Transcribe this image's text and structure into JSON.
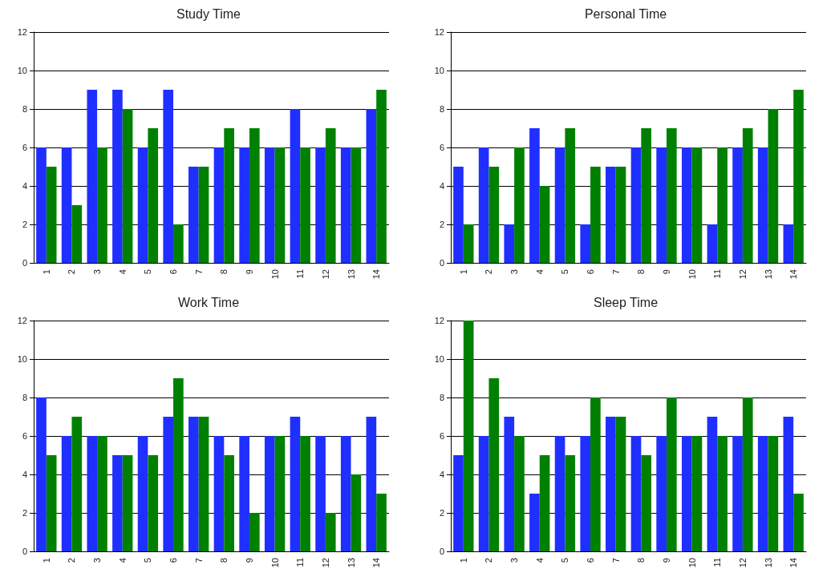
{
  "chart_data": [
    {
      "type": "bar",
      "title": "Study Time",
      "categories": [
        "1",
        "2",
        "3",
        "4",
        "5",
        "6",
        "7",
        "8",
        "9",
        "10",
        "11",
        "12",
        "13",
        "14"
      ],
      "series": [
        {
          "color": "#1f2fff",
          "values": [
            6,
            6,
            9,
            9,
            6,
            9,
            5,
            6,
            6,
            6,
            8,
            6,
            6,
            8
          ]
        },
        {
          "color": "#008000",
          "values": [
            5,
            3,
            6,
            8,
            7,
            2,
            5,
            7,
            7,
            6,
            6,
            7,
            6,
            9
          ]
        }
      ],
      "ylim": [
        0,
        12
      ],
      "yticks": [
        0,
        2,
        4,
        6,
        8,
        10,
        12
      ],
      "grid": "y"
    },
    {
      "type": "bar",
      "title": "Personal Time",
      "categories": [
        "1",
        "2",
        "3",
        "4",
        "5",
        "6",
        "7",
        "8",
        "9",
        "10",
        "11",
        "12",
        "13",
        "14"
      ],
      "series": [
        {
          "color": "#1f2fff",
          "values": [
            5,
            6,
            2,
            7,
            6,
            2,
            5,
            6,
            6,
            6,
            2,
            6,
            6,
            2
          ]
        },
        {
          "color": "#008000",
          "values": [
            2,
            5,
            6,
            4,
            7,
            5,
            5,
            7,
            7,
            6,
            6,
            7,
            8,
            9
          ]
        }
      ],
      "ylim": [
        0,
        12
      ],
      "yticks": [
        0,
        2,
        4,
        6,
        8,
        10,
        12
      ],
      "grid": "y"
    },
    {
      "type": "bar",
      "title": "Work Time",
      "categories": [
        "1",
        "2",
        "3",
        "4",
        "5",
        "6",
        "7",
        "8",
        "9",
        "10",
        "11",
        "12",
        "13",
        "14"
      ],
      "series": [
        {
          "color": "#1f2fff",
          "values": [
            8,
            6,
            6,
            5,
            6,
            7,
            7,
            6,
            6,
            6,
            7,
            6,
            6,
            7
          ]
        },
        {
          "color": "#008000",
          "values": [
            5,
            7,
            6,
            5,
            5,
            9,
            7,
            5,
            2,
            6,
            6,
            2,
            4,
            3
          ]
        }
      ],
      "ylim": [
        0,
        12
      ],
      "yticks": [
        0,
        2,
        4,
        6,
        8,
        10,
        12
      ],
      "grid": "y"
    },
    {
      "type": "bar",
      "title": "Sleep Time",
      "categories": [
        "1",
        "2",
        "3",
        "4",
        "5",
        "6",
        "7",
        "8",
        "9",
        "10",
        "11",
        "12",
        "13",
        "14"
      ],
      "series": [
        {
          "color": "#1f2fff",
          "values": [
            5,
            6,
            7,
            3,
            6,
            6,
            7,
            6,
            6,
            6,
            7,
            6,
            6,
            7
          ]
        },
        {
          "color": "#008000",
          "values": [
            12,
            9,
            6,
            5,
            5,
            8,
            7,
            5,
            8,
            6,
            6,
            8,
            6,
            3
          ]
        }
      ],
      "ylim": [
        0,
        12
      ],
      "yticks": [
        0,
        2,
        4,
        6,
        8,
        10,
        12
      ],
      "grid": "y"
    }
  ]
}
